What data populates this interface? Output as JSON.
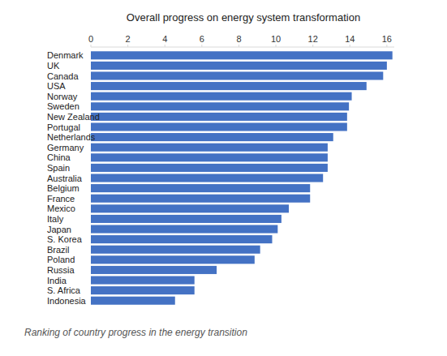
{
  "chart_data": {
    "type": "bar",
    "title": "Overall progress on energy system transformation",
    "caption": "Ranking of country progress in the energy transition",
    "orientation": "horizontal",
    "categories": [
      "Denmark",
      "UK",
      "Canada",
      "USA",
      "Norway",
      "Sweden",
      "New Zealand",
      "Portugal",
      "Netherlands",
      "Germany",
      "China",
      "Spain",
      "Australia",
      "Belgium",
      "France",
      "Mexico",
      "Italy",
      "Japan",
      "S. Korea",
      "Brazil",
      "Poland",
      "Russia",
      "India",
      "S. Africa",
      "Indonesia"
    ],
    "values": [
      16.3,
      16.0,
      15.8,
      14.9,
      14.1,
      13.95,
      13.85,
      13.85,
      13.1,
      12.8,
      12.8,
      12.8,
      12.55,
      11.85,
      11.85,
      10.7,
      10.3,
      10.1,
      9.8,
      9.15,
      8.85,
      6.8,
      5.6,
      5.6,
      4.55
    ],
    "color": "#4472c4",
    "xlim": [
      0,
      16.4
    ],
    "xticks": [
      0,
      2,
      4,
      6,
      8,
      10,
      12,
      14,
      16
    ],
    "grid": false
  }
}
